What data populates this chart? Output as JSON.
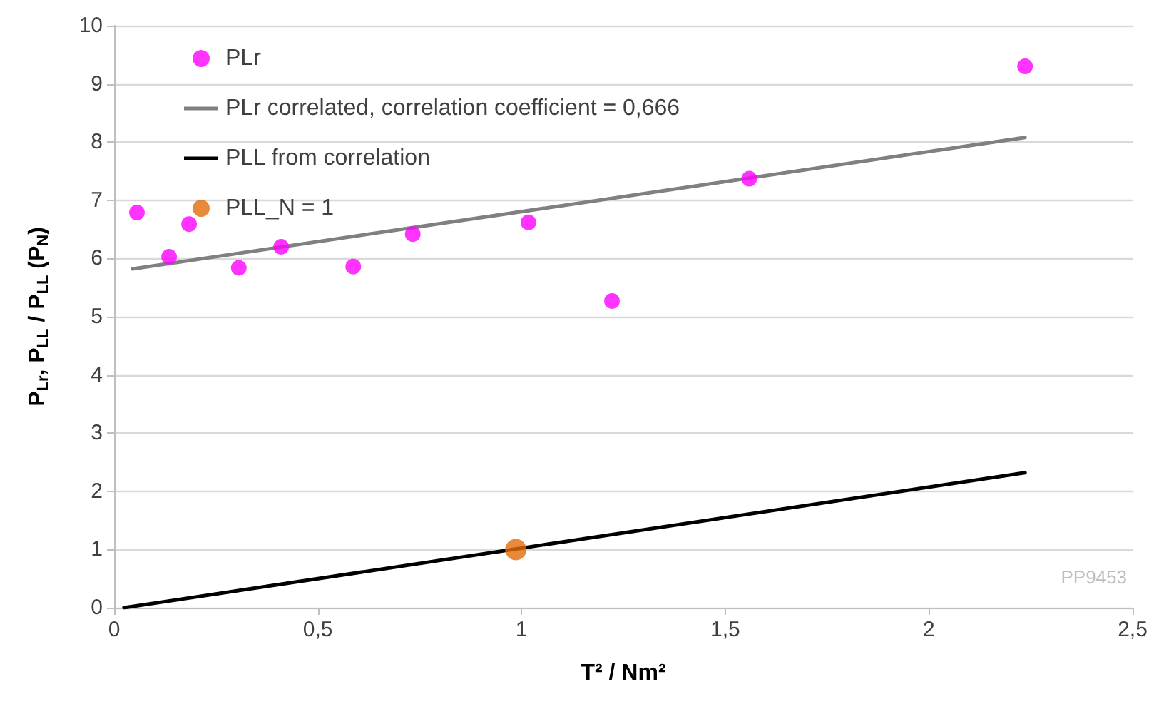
{
  "chart_data": {
    "type": "scatter",
    "xlabel": "T² / Nm²",
    "ylabel": "P$_{Lr}$, P$_{LL}$ / P$_{LL}$ (P$_{N}$)",
    "xlim": [
      0,
      2.5
    ],
    "xticks": [
      0,
      {
        "value": 0.5,
        "label": "0,5"
      },
      1,
      {
        "value": 1.5,
        "label": "1,5"
      },
      2,
      {
        "value": 2.5,
        "label": "2,5"
      }
    ],
    "ylim": [
      0,
      10
    ],
    "yticks": [
      0,
      1,
      2,
      3,
      4,
      5,
      6,
      7,
      8,
      9,
      10
    ],
    "grid": "y",
    "legend": "top left",
    "marker": "circle",
    "annotations": [
      "PP9453"
    ],
    "series": [
      {
        "name": "PLr",
        "color": "#ff00ff",
        "x": [
          0.056,
          0.135,
          0.184,
          0.306,
          0.41,
          0.587,
          0.733,
          1.017,
          1.222,
          1.559,
          2.236
        ],
        "values": [
          6.79,
          6.03,
          6.59,
          5.84,
          6.2,
          5.86,
          6.42,
          6.62,
          5.27,
          7.37,
          9.3
        ]
      },
      {
        "name": "PLr correlated, correlation coefficient = 0,666",
        "type": "line",
        "marker": "none",
        "color": "#808080",
        "x": [
          0.045,
          2.236
        ],
        "values": [
          5.82,
          8.08
        ]
      },
      {
        "name": "PLL from correlation",
        "type": "line",
        "marker": "none",
        "color": "#000000",
        "x": [
          0.024,
          2.236
        ],
        "values": [
          0,
          2.32
        ]
      },
      {
        "name": "PLL_N = 1",
        "color": "#e36c09",
        "x": [
          0.986
        ],
        "values": [
          1.0
        ]
      }
    ]
  }
}
